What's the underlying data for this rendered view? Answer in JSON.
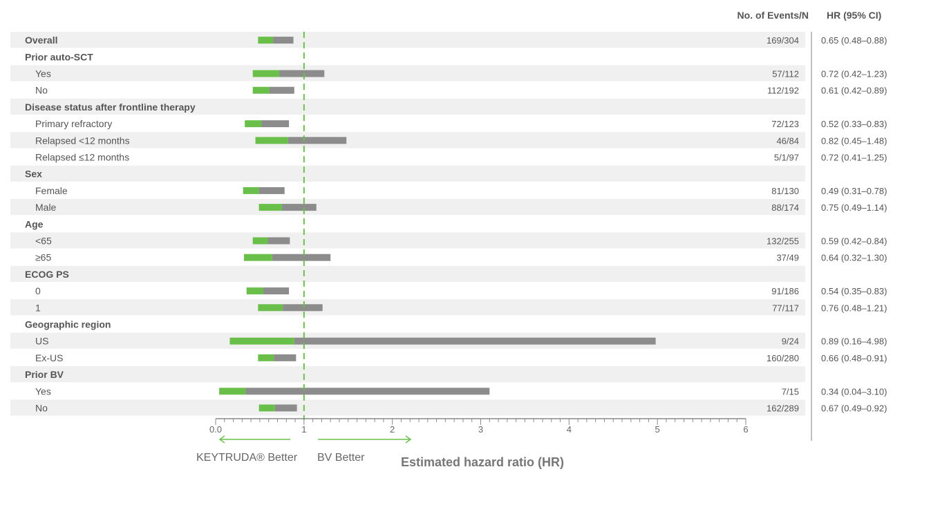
{
  "chart_data": {
    "type": "forest",
    "columns": {
      "events": "No. of Events/N",
      "hr": "HR (95% CI)"
    },
    "xlabel": "Estimated hazard ratio (HR)",
    "xlim": [
      0,
      6
    ],
    "xticks": [
      "0.0",
      "1",
      "2",
      "3",
      "4",
      "5",
      "6"
    ],
    "reference_line": 1,
    "direction_labels": {
      "left": "KEYTRUDA® Better",
      "right": "BV Better"
    },
    "colors": {
      "lower_segment": "#6abf4b",
      "upper_segment": "#8c8c8c",
      "reference": "#6abf4b",
      "stripe": "#f0f0f0"
    },
    "rows": [
      {
        "label": "Overall",
        "group": true,
        "shaded": true,
        "events": "169/304",
        "hr_text": "0.65 (0.48–0.88)",
        "hr": 0.65,
        "lo": 0.48,
        "hi": 0.88
      },
      {
        "label": "Prior auto-SCT",
        "group": true,
        "shaded": false
      },
      {
        "label": "Yes",
        "group": false,
        "shaded": true,
        "events": "57/112",
        "hr_text": "0.72 (0.42–1.23)",
        "hr": 0.72,
        "lo": 0.42,
        "hi": 1.23
      },
      {
        "label": "No",
        "group": false,
        "shaded": false,
        "events": "112/192",
        "hr_text": "0.61 (0.42–0.89)",
        "hr": 0.61,
        "lo": 0.42,
        "hi": 0.89
      },
      {
        "label": "Disease status after frontline therapy",
        "group": true,
        "shaded": true
      },
      {
        "label": "Primary refractory",
        "group": false,
        "shaded": false,
        "events": "72/123",
        "hr_text": "0.52 (0.33–0.83)",
        "hr": 0.52,
        "lo": 0.33,
        "hi": 0.83
      },
      {
        "label": "Relapsed <12 months",
        "group": false,
        "shaded": true,
        "events": "46/84",
        "hr_text": "0.82 (0.45–1.48)",
        "hr": 0.82,
        "lo": 0.45,
        "hi": 1.48
      },
      {
        "label": "Relapsed ≤12 months",
        "group": false,
        "shaded": false,
        "events": "5/1/97",
        "hr_text": "0.72 (0.41–1.25)"
      },
      {
        "label": "Sex",
        "group": true,
        "shaded": true
      },
      {
        "label": "Female",
        "group": false,
        "shaded": false,
        "events": "81/130",
        "hr_text": "0.49 (0.31–0.78)",
        "hr": 0.49,
        "lo": 0.31,
        "hi": 0.78
      },
      {
        "label": "Male",
        "group": false,
        "shaded": true,
        "events": "88/174",
        "hr_text": "0.75 (0.49–1.14)",
        "hr": 0.75,
        "lo": 0.49,
        "hi": 1.14
      },
      {
        "label": "Age",
        "group": true,
        "shaded": false
      },
      {
        "label": "<65",
        "group": false,
        "shaded": true,
        "events": "132/255",
        "hr_text": "0.59 (0.42–0.84)",
        "hr": 0.59,
        "lo": 0.42,
        "hi": 0.84
      },
      {
        "label": "≥65",
        "group": false,
        "shaded": false,
        "events": "37/49",
        "hr_text": "0.64 (0.32–1.30)",
        "hr": 0.64,
        "lo": 0.32,
        "hi": 1.3
      },
      {
        "label": "ECOG PS",
        "group": true,
        "shaded": true
      },
      {
        "label": "0",
        "group": false,
        "shaded": false,
        "events": "91/186",
        "hr_text": "0.54 (0.35–0.83)",
        "hr": 0.54,
        "lo": 0.35,
        "hi": 0.83
      },
      {
        "label": "1",
        "group": false,
        "shaded": true,
        "events": "77/117",
        "hr_text": "0.76 (0.48–1.21)",
        "hr": 0.76,
        "lo": 0.48,
        "hi": 1.21
      },
      {
        "label": "Geographic region",
        "group": true,
        "shaded": false
      },
      {
        "label": "US",
        "group": false,
        "shaded": true,
        "events": "9/24",
        "hr_text": "0.89 (0.16–4.98)",
        "hr": 0.89,
        "lo": 0.16,
        "hi": 4.98
      },
      {
        "label": "Ex-US",
        "group": false,
        "shaded": false,
        "events": "160/280",
        "hr_text": "0.66 (0.48–0.91)",
        "hr": 0.66,
        "lo": 0.48,
        "hi": 0.91
      },
      {
        "label": "Prior BV",
        "group": true,
        "shaded": true
      },
      {
        "label": "Yes",
        "group": false,
        "shaded": false,
        "events": "7/15",
        "hr_text": "0.34 (0.04–3.10)",
        "hr": 0.34,
        "lo": 0.04,
        "hi": 3.1
      },
      {
        "label": "No",
        "group": false,
        "shaded": true,
        "events": "162/289",
        "hr_text": "0.67 (0.49–0.92)",
        "hr": 0.67,
        "lo": 0.49,
        "hi": 0.92
      }
    ]
  }
}
